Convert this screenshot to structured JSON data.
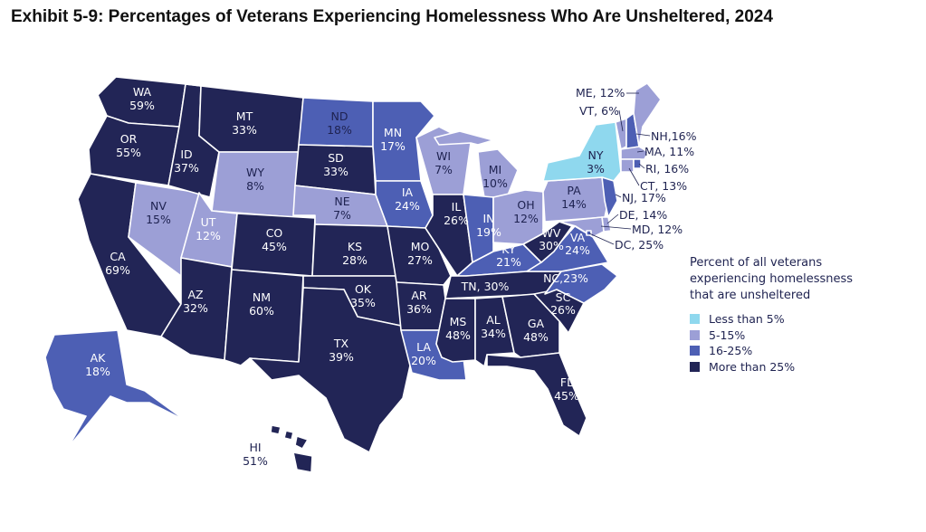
{
  "title": "Exhibit 5-9: Percentages of Veterans Experiencing Homelessness Who Are Unsheltered, 2024",
  "colors": {
    "lt5": "#8fd8ee",
    "5to15": "#9c9fd6",
    "16to25": "#4d5fb4",
    "gt25": "#222556"
  },
  "legend": {
    "title": "Percent of all veterans experiencing homelessness that are unsheltered",
    "items": [
      {
        "label": "Less than 5%",
        "bucket": "lt5"
      },
      {
        "label": "5-15%",
        "bucket": "5to15"
      },
      {
        "label": "16-25%",
        "bucket": "16to25"
      },
      {
        "label": "More than 25%",
        "bucket": "gt25"
      }
    ]
  },
  "states": {
    "WA": {
      "name": "WA",
      "value": "59%",
      "bucket": "gt25"
    },
    "OR": {
      "name": "OR",
      "value": "55%",
      "bucket": "gt25"
    },
    "CA": {
      "name": "CA",
      "value": "69%",
      "bucket": "gt25"
    },
    "ID": {
      "name": "ID",
      "value": "37%",
      "bucket": "gt25"
    },
    "NV": {
      "name": "NV",
      "value": "15%",
      "bucket": "5to15"
    },
    "MT": {
      "name": "MT",
      "value": "33%",
      "bucket": "gt25"
    },
    "WY": {
      "name": "WY",
      "value": "8%",
      "bucket": "5to15"
    },
    "UT": {
      "name": "UT",
      "value": "12%",
      "bucket": "5to15"
    },
    "AZ": {
      "name": "AZ",
      "value": "32%",
      "bucket": "gt25"
    },
    "CO": {
      "name": "CO",
      "value": "45%",
      "bucket": "gt25"
    },
    "NM": {
      "name": "NM",
      "value": "60%",
      "bucket": "gt25"
    },
    "ND": {
      "name": "ND",
      "value": "18%",
      "bucket": "16to25"
    },
    "SD": {
      "name": "SD",
      "value": "33%",
      "bucket": "gt25"
    },
    "NE": {
      "name": "NE",
      "value": "7%",
      "bucket": "5to15"
    },
    "KS": {
      "name": "KS",
      "value": "28%",
      "bucket": "gt25"
    },
    "OK": {
      "name": "OK",
      "value": "35%",
      "bucket": "gt25"
    },
    "TX": {
      "name": "TX",
      "value": "39%",
      "bucket": "gt25"
    },
    "MN": {
      "name": "MN",
      "value": "17%",
      "bucket": "16to25"
    },
    "IA": {
      "name": "IA",
      "value": "24%",
      "bucket": "16to25"
    },
    "MO": {
      "name": "MO",
      "value": "27%",
      "bucket": "gt25"
    },
    "AR": {
      "name": "AR",
      "value": "36%",
      "bucket": "gt25"
    },
    "LA": {
      "name": "LA",
      "value": "20%",
      "bucket": "16to25"
    },
    "WI": {
      "name": "WI",
      "value": "7%",
      "bucket": "5to15"
    },
    "IL": {
      "name": "IL",
      "value": "26%",
      "bucket": "gt25"
    },
    "MI": {
      "name": "MI",
      "value": "10%",
      "bucket": "5to15"
    },
    "IN": {
      "name": "IN",
      "value": "19%",
      "bucket": "16to25"
    },
    "OH": {
      "name": "OH",
      "value": "12%",
      "bucket": "5to15"
    },
    "KY": {
      "name": "KY",
      "value": "21%",
      "bucket": "16to25"
    },
    "TN": {
      "name": "TN",
      "value": "30%",
      "bucket": "gt25"
    },
    "MS": {
      "name": "MS",
      "value": "48%",
      "bucket": "gt25"
    },
    "AL": {
      "name": "AL",
      "value": "34%",
      "bucket": "gt25"
    },
    "GA": {
      "name": "GA",
      "value": "48%",
      "bucket": "gt25"
    },
    "FL": {
      "name": "FL",
      "value": "45%",
      "bucket": "gt25"
    },
    "SC": {
      "name": "SC",
      "value": "26%",
      "bucket": "gt25"
    },
    "NC": {
      "name": "NC",
      "value": "23%",
      "bucket": "16to25"
    },
    "VA": {
      "name": "VA",
      "value": "24%",
      "bucket": "16to25"
    },
    "WV": {
      "name": "WV",
      "value": "30%",
      "bucket": "gt25"
    },
    "PA": {
      "name": "PA",
      "value": "14%",
      "bucket": "5to15"
    },
    "NY": {
      "name": "NY",
      "value": "3%",
      "bucket": "lt5"
    },
    "ME": {
      "name": "ME",
      "value": "12%",
      "bucket": "5to15"
    },
    "VT": {
      "name": "VT",
      "value": "6%",
      "bucket": "5to15"
    },
    "NH": {
      "name": "NH",
      "value": "16%",
      "bucket": "16to25"
    },
    "MA": {
      "name": "MA",
      "value": "11%",
      "bucket": "5to15"
    },
    "RI": {
      "name": "RI",
      "value": "16%",
      "bucket": "16to25"
    },
    "CT": {
      "name": "CT",
      "value": "13%",
      "bucket": "5to15"
    },
    "NJ": {
      "name": "NJ",
      "value": "17%",
      "bucket": "16to25"
    },
    "DE": {
      "name": "DE",
      "value": "14%",
      "bucket": "5to15"
    },
    "MD": {
      "name": "MD",
      "value": "12%",
      "bucket": "5to15"
    },
    "DC": {
      "name": "DC",
      "value": "25%",
      "bucket": "16to25"
    },
    "AK": {
      "name": "AK",
      "value": "18%",
      "bucket": "16to25"
    },
    "HI": {
      "name": "HI",
      "value": "51%",
      "bucket": "gt25"
    }
  },
  "callouts": {
    "ME": "ME, 12%",
    "VT": "VT, 6%",
    "NH": "NH,16%",
    "MA": "MA, 11%",
    "RI": "RI, 16%",
    "CT": "CT, 13%",
    "NJ": "NJ, 17%",
    "DE": "DE, 14%",
    "MD": "MD, 12%",
    "DC": "DC, 25%",
    "NC": "NC,23%",
    "TN": "TN, 30%"
  }
}
